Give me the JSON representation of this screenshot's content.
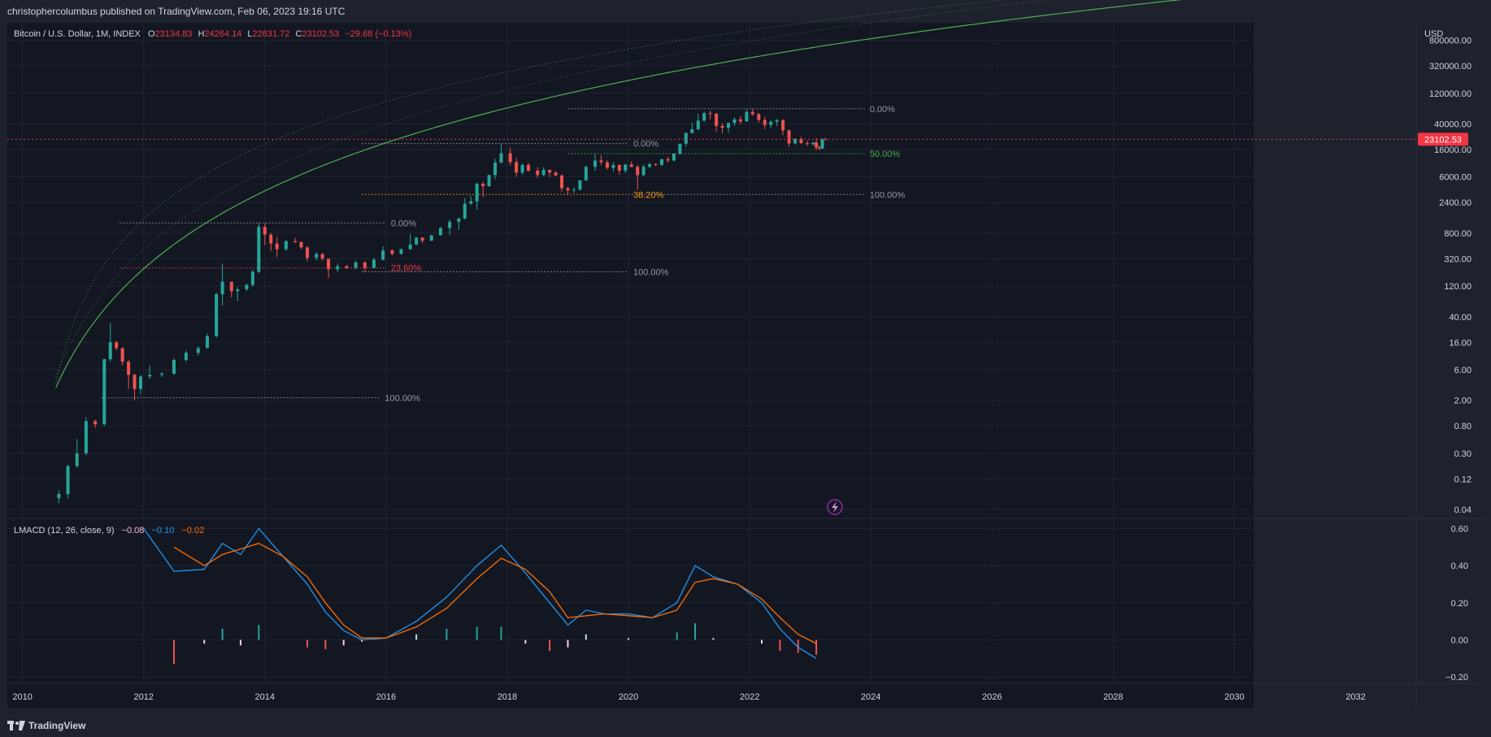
{
  "header": {
    "publisher_text": "christophercolumbus published on TradingView.com, Feb 06, 2023 19:16 UTC"
  },
  "footer": {
    "brand": "TradingView"
  },
  "legend": {
    "symbol": "Bitcoin / U.S. Dollar, 1M, INDEX",
    "o_label": "O",
    "o_value": "23134.83",
    "h_label": "H",
    "h_value": "24264.14",
    "l_label": "L",
    "l_value": "22631.72",
    "c_label": "C",
    "c_value": "23102.53",
    "change": "−29.68 (−0.13%)"
  },
  "price_axis": {
    "currency": "USD",
    "ticks": [
      "800000.00",
      "320000.00",
      "120000.00",
      "40000.00",
      "16000.00",
      "6000.00",
      "2400.00",
      "800.00",
      "320.00",
      "120.00",
      "40.00",
      "16.00",
      "6.00",
      "2.00",
      "0.80",
      "0.30",
      "0.12",
      "0.04"
    ],
    "last_price_label": "23102.53"
  },
  "macd_panel": {
    "title": "LMACD (12, 26, close, 9)",
    "hist_value": "−0.08",
    "macd_value": "−0.10",
    "signal_value": "−0.02",
    "ticks": [
      "0.60",
      "0.40",
      "0.20",
      "0.00",
      "−0.20"
    ]
  },
  "time_axis": {
    "ticks": [
      "2010",
      "2012",
      "2014",
      "2016",
      "2018",
      "2020",
      "2022",
      "2024",
      "2026",
      "2028",
      "2030",
      "2032"
    ]
  },
  "fib_labels": [
    {
      "text": "0.00%",
      "color": "#9598a1"
    },
    {
      "text": "23.60%",
      "color": "#f23645"
    },
    {
      "text": "100.00%",
      "color": "#9598a1"
    },
    {
      "text": "0.00%",
      "color": "#9598a1"
    },
    {
      "text": "38.20%",
      "color": "#ff9800"
    },
    {
      "text": "100.00%",
      "color": "#9598a1"
    },
    {
      "text": "0.00%",
      "color": "#9598a1"
    },
    {
      "text": "50.00%",
      "color": "#4caf50"
    },
    {
      "text": "100.00%",
      "color": "#9598a1"
    },
    {
      "text": "100.00%",
      "color": "#9598a1"
    }
  ],
  "colors": {
    "background": "#131722",
    "frame": "#1e222d",
    "grid": "#1f2430",
    "up_candle": "#26a69a",
    "down_candle": "#ef5350",
    "macd_line": "#2196f3",
    "signal_line": "#ff6d00",
    "hist_up": "#b2dfdb",
    "hist_up_strong": "#26a69a",
    "hist_down": "#ffcdd2",
    "hist_down_strong": "#ef5350",
    "last_price": "#f23645",
    "curve": "#4caf50",
    "event_icon": "#9c27b0"
  },
  "chart_data": {
    "type": "candlestick",
    "title": "Bitcoin / U.S. Dollar, 1M, INDEX",
    "y_scale": "log",
    "ylim": [
      0.03,
      1500000
    ],
    "xlim": [
      2009.75,
      2033.0
    ],
    "candles": [
      {
        "t": 2010.6,
        "o": 0.06,
        "h": 0.08,
        "l": 0.05,
        "c": 0.07
      },
      {
        "t": 2010.75,
        "o": 0.07,
        "h": 0.2,
        "l": 0.06,
        "c": 0.19
      },
      {
        "t": 2010.9,
        "o": 0.19,
        "h": 0.5,
        "l": 0.18,
        "c": 0.3
      },
      {
        "t": 2011.05,
        "o": 0.3,
        "h": 1.1,
        "l": 0.28,
        "c": 0.95
      },
      {
        "t": 2011.2,
        "o": 0.95,
        "h": 1.0,
        "l": 0.75,
        "c": 0.85
      },
      {
        "t": 2011.35,
        "o": 0.85,
        "h": 9.0,
        "l": 0.8,
        "c": 8.7
      },
      {
        "t": 2011.45,
        "o": 8.7,
        "h": 32.0,
        "l": 8.0,
        "c": 16.0
      },
      {
        "t": 2011.55,
        "o": 16.0,
        "h": 17.0,
        "l": 12.0,
        "c": 13.0
      },
      {
        "t": 2011.65,
        "o": 13.0,
        "h": 13.5,
        "l": 7.0,
        "c": 8.0
      },
      {
        "t": 2011.75,
        "o": 8.0,
        "h": 8.5,
        "l": 3.0,
        "c": 5.0
      },
      {
        "t": 2011.85,
        "o": 5.0,
        "h": 5.2,
        "l": 2.0,
        "c": 3.0
      },
      {
        "t": 2011.95,
        "o": 3.0,
        "h": 5.0,
        "l": 2.5,
        "c": 4.7
      },
      {
        "t": 2012.1,
        "o": 4.7,
        "h": 7.0,
        "l": 4.3,
        "c": 5.0
      },
      {
        "t": 2012.3,
        "o": 5.0,
        "h": 5.5,
        "l": 4.6,
        "c": 5.2
      },
      {
        "t": 2012.5,
        "o": 5.2,
        "h": 9.0,
        "l": 5.0,
        "c": 8.5
      },
      {
        "t": 2012.7,
        "o": 8.5,
        "h": 12.0,
        "l": 8.0,
        "c": 11.0
      },
      {
        "t": 2012.9,
        "o": 11.0,
        "h": 14.0,
        "l": 10.0,
        "c": 13.0
      },
      {
        "t": 2013.05,
        "o": 13.0,
        "h": 22.0,
        "l": 13.0,
        "c": 20.0
      },
      {
        "t": 2013.2,
        "o": 20.0,
        "h": 95.0,
        "l": 19.0,
        "c": 90.0
      },
      {
        "t": 2013.3,
        "o": 90.0,
        "h": 266.0,
        "l": 60.0,
        "c": 140.0
      },
      {
        "t": 2013.45,
        "o": 140.0,
        "h": 140.0,
        "l": 80.0,
        "c": 100.0
      },
      {
        "t": 2013.55,
        "o": 100.0,
        "h": 115.0,
        "l": 70.0,
        "c": 107.0
      },
      {
        "t": 2013.7,
        "o": 107.0,
        "h": 130.0,
        "l": 100.0,
        "c": 125.0
      },
      {
        "t": 2013.8,
        "o": 125.0,
        "h": 215.0,
        "l": 118.0,
        "c": 200.0
      },
      {
        "t": 2013.9,
        "o": 200.0,
        "h": 1150.0,
        "l": 190.0,
        "c": 1000.0
      },
      {
        "t": 2014.0,
        "o": 1000.0,
        "h": 1150.0,
        "l": 520.0,
        "c": 760.0
      },
      {
        "t": 2014.1,
        "o": 760.0,
        "h": 800.0,
        "l": 420.0,
        "c": 550.0
      },
      {
        "t": 2014.2,
        "o": 550.0,
        "h": 700.0,
        "l": 340.0,
        "c": 450.0
      },
      {
        "t": 2014.35,
        "o": 450.0,
        "h": 620.0,
        "l": 420.0,
        "c": 600.0
      },
      {
        "t": 2014.5,
        "o": 600.0,
        "h": 680.0,
        "l": 560.0,
        "c": 580.0
      },
      {
        "t": 2014.6,
        "o": 580.0,
        "h": 600.0,
        "l": 450.0,
        "c": 480.0
      },
      {
        "t": 2014.7,
        "o": 480.0,
        "h": 500.0,
        "l": 290.0,
        "c": 330.0
      },
      {
        "t": 2014.85,
        "o": 330.0,
        "h": 400.0,
        "l": 300.0,
        "c": 380.0
      },
      {
        "t": 2014.95,
        "o": 380.0,
        "h": 390.0,
        "l": 300.0,
        "c": 320.0
      },
      {
        "t": 2015.05,
        "o": 320.0,
        "h": 320.0,
        "l": 160.0,
        "c": 220.0
      },
      {
        "t": 2015.2,
        "o": 220.0,
        "h": 270.0,
        "l": 200.0,
        "c": 245.0
      },
      {
        "t": 2015.35,
        "o": 245.0,
        "h": 255.0,
        "l": 220.0,
        "c": 230.0
      },
      {
        "t": 2015.5,
        "o": 230.0,
        "h": 300.0,
        "l": 220.0,
        "c": 280.0
      },
      {
        "t": 2015.65,
        "o": 280.0,
        "h": 290.0,
        "l": 200.0,
        "c": 230.0
      },
      {
        "t": 2015.8,
        "o": 230.0,
        "h": 330.0,
        "l": 230.0,
        "c": 310.0
      },
      {
        "t": 2015.95,
        "o": 310.0,
        "h": 500.0,
        "l": 300.0,
        "c": 430.0
      },
      {
        "t": 2016.1,
        "o": 430.0,
        "h": 450.0,
        "l": 360.0,
        "c": 380.0
      },
      {
        "t": 2016.25,
        "o": 380.0,
        "h": 460.0,
        "l": 370.0,
        "c": 450.0
      },
      {
        "t": 2016.4,
        "o": 450.0,
        "h": 780.0,
        "l": 440.0,
        "c": 530.0
      },
      {
        "t": 2016.5,
        "o": 530.0,
        "h": 700.0,
        "l": 520.0,
        "c": 680.0
      },
      {
        "t": 2016.6,
        "o": 680.0,
        "h": 690.0,
        "l": 560.0,
        "c": 610.0
      },
      {
        "t": 2016.75,
        "o": 610.0,
        "h": 750.0,
        "l": 600.0,
        "c": 740.0
      },
      {
        "t": 2016.9,
        "o": 740.0,
        "h": 1000.0,
        "l": 730.0,
        "c": 960.0
      },
      {
        "t": 2017.05,
        "o": 960.0,
        "h": 1300.0,
        "l": 750.0,
        "c": 1200.0
      },
      {
        "t": 2017.2,
        "o": 1200.0,
        "h": 1400.0,
        "l": 900.0,
        "c": 1350.0
      },
      {
        "t": 2017.3,
        "o": 1350.0,
        "h": 2800.0,
        "l": 1300.0,
        "c": 2300.0
      },
      {
        "t": 2017.4,
        "o": 2300.0,
        "h": 3000.0,
        "l": 2200.0,
        "c": 2500.0
      },
      {
        "t": 2017.5,
        "o": 2500.0,
        "h": 4900.0,
        "l": 1850.0,
        "c": 4700.0
      },
      {
        "t": 2017.6,
        "o": 4700.0,
        "h": 5000.0,
        "l": 2900.0,
        "c": 4300.0
      },
      {
        "t": 2017.7,
        "o": 4300.0,
        "h": 6500.0,
        "l": 4200.0,
        "c": 6400.0
      },
      {
        "t": 2017.8,
        "o": 6400.0,
        "h": 11500.0,
        "l": 5500.0,
        "c": 10000.0
      },
      {
        "t": 2017.9,
        "o": 10000.0,
        "h": 19800.0,
        "l": 9800.0,
        "c": 14000.0
      },
      {
        "t": 2018.05,
        "o": 14000.0,
        "h": 17200.0,
        "l": 9000.0,
        "c": 10200.0
      },
      {
        "t": 2018.15,
        "o": 10200.0,
        "h": 11800.0,
        "l": 6000.0,
        "c": 7000.0
      },
      {
        "t": 2018.25,
        "o": 7000.0,
        "h": 9700.0,
        "l": 6500.0,
        "c": 9200.0
      },
      {
        "t": 2018.35,
        "o": 9200.0,
        "h": 9900.0,
        "l": 7200.0,
        "c": 7500.0
      },
      {
        "t": 2018.5,
        "o": 7500.0,
        "h": 8500.0,
        "l": 5800.0,
        "c": 6400.0
      },
      {
        "t": 2018.6,
        "o": 6400.0,
        "h": 8500.0,
        "l": 6200.0,
        "c": 7700.0
      },
      {
        "t": 2018.7,
        "o": 7700.0,
        "h": 7800.0,
        "l": 5900.0,
        "c": 7000.0
      },
      {
        "t": 2018.8,
        "o": 7000.0,
        "h": 7400.0,
        "l": 6200.0,
        "c": 6300.0
      },
      {
        "t": 2018.9,
        "o": 6300.0,
        "h": 6600.0,
        "l": 3500.0,
        "c": 4000.0
      },
      {
        "t": 2019.0,
        "o": 4000.0,
        "h": 4200.0,
        "l": 3200.0,
        "c": 3700.0
      },
      {
        "t": 2019.1,
        "o": 3700.0,
        "h": 4100.0,
        "l": 3400.0,
        "c": 3800.0
      },
      {
        "t": 2019.2,
        "o": 3800.0,
        "h": 5300.0,
        "l": 3700.0,
        "c": 5300.0
      },
      {
        "t": 2019.3,
        "o": 5300.0,
        "h": 9000.0,
        "l": 5200.0,
        "c": 8600.0
      },
      {
        "t": 2019.45,
        "o": 8600.0,
        "h": 13800.0,
        "l": 7500.0,
        "c": 10800.0
      },
      {
        "t": 2019.55,
        "o": 10800.0,
        "h": 13000.0,
        "l": 9100.0,
        "c": 10100.0
      },
      {
        "t": 2019.65,
        "o": 10100.0,
        "h": 10900.0,
        "l": 7800.0,
        "c": 8300.0
      },
      {
        "t": 2019.75,
        "o": 8300.0,
        "h": 10300.0,
        "l": 7300.0,
        "c": 9200.0
      },
      {
        "t": 2019.85,
        "o": 9200.0,
        "h": 9300.0,
        "l": 6500.0,
        "c": 7500.0
      },
      {
        "t": 2019.95,
        "o": 7500.0,
        "h": 9500.0,
        "l": 6900.0,
        "c": 9350.0
      },
      {
        "t": 2020.05,
        "o": 9350.0,
        "h": 10500.0,
        "l": 8500.0,
        "c": 8600.0
      },
      {
        "t": 2020.15,
        "o": 8600.0,
        "h": 9200.0,
        "l": 3800.0,
        "c": 6400.0
      },
      {
        "t": 2020.25,
        "o": 6400.0,
        "h": 9400.0,
        "l": 6200.0,
        "c": 8600.0
      },
      {
        "t": 2020.35,
        "o": 8600.0,
        "h": 10000.0,
        "l": 8100.0,
        "c": 9450.0
      },
      {
        "t": 2020.45,
        "o": 9450.0,
        "h": 9800.0,
        "l": 8900.0,
        "c": 9150.0
      },
      {
        "t": 2020.55,
        "o": 9150.0,
        "h": 11500.0,
        "l": 9000.0,
        "c": 11300.0
      },
      {
        "t": 2020.65,
        "o": 11300.0,
        "h": 12400.0,
        "l": 10000.0,
        "c": 10800.0
      },
      {
        "t": 2020.75,
        "o": 10800.0,
        "h": 13800.0,
        "l": 10400.0,
        "c": 13800.0
      },
      {
        "t": 2020.85,
        "o": 13800.0,
        "h": 19800.0,
        "l": 13200.0,
        "c": 19700.0
      },
      {
        "t": 2020.95,
        "o": 19700.0,
        "h": 29300.0,
        "l": 17600.0,
        "c": 29000.0
      },
      {
        "t": 2021.05,
        "o": 29000.0,
        "h": 42000.0,
        "l": 28000.0,
        "c": 33000.0
      },
      {
        "t": 2021.15,
        "o": 33000.0,
        "h": 58000.0,
        "l": 32000.0,
        "c": 45000.0
      },
      {
        "t": 2021.25,
        "o": 45000.0,
        "h": 61800.0,
        "l": 43000.0,
        "c": 58800.0
      },
      {
        "t": 2021.35,
        "o": 58800.0,
        "h": 64800.0,
        "l": 47000.0,
        "c": 57700.0
      },
      {
        "t": 2021.45,
        "o": 57700.0,
        "h": 59500.0,
        "l": 30000.0,
        "c": 37300.0
      },
      {
        "t": 2021.55,
        "o": 37300.0,
        "h": 41000.0,
        "l": 28800.0,
        "c": 35000.0
      },
      {
        "t": 2021.65,
        "o": 35000.0,
        "h": 42000.0,
        "l": 29200.0,
        "c": 41500.0
      },
      {
        "t": 2021.75,
        "o": 41500.0,
        "h": 50500.0,
        "l": 37300.0,
        "c": 47100.0
      },
      {
        "t": 2021.85,
        "o": 47100.0,
        "h": 52900.0,
        "l": 39600.0,
        "c": 43800.0
      },
      {
        "t": 2021.95,
        "o": 43800.0,
        "h": 67000.0,
        "l": 43200.0,
        "c": 61300.0
      },
      {
        "t": 2022.05,
        "o": 61300.0,
        "h": 69000.0,
        "l": 53000.0,
        "c": 57000.0
      },
      {
        "t": 2022.15,
        "o": 57000.0,
        "h": 59200.0,
        "l": 42000.0,
        "c": 46200.0
      },
      {
        "t": 2022.25,
        "o": 46200.0,
        "h": 52000.0,
        "l": 33000.0,
        "c": 38500.0
      },
      {
        "t": 2022.35,
        "o": 38500.0,
        "h": 45800.0,
        "l": 34300.0,
        "c": 43200.0
      },
      {
        "t": 2022.45,
        "o": 43200.0,
        "h": 48200.0,
        "l": 37400.0,
        "c": 45500.0
      },
      {
        "t": 2022.55,
        "o": 45500.0,
        "h": 47500.0,
        "l": 26700.0,
        "c": 31800.0
      },
      {
        "t": 2022.65,
        "o": 31800.0,
        "h": 32400.0,
        "l": 17600.0,
        "c": 19900.0
      },
      {
        "t": 2022.75,
        "o": 19900.0,
        "h": 24200.0,
        "l": 18900.0,
        "c": 23300.0
      },
      {
        "t": 2022.85,
        "o": 23300.0,
        "h": 25200.0,
        "l": 19500.0,
        "c": 20100.0
      },
      {
        "t": 2022.95,
        "o": 20100.0,
        "h": 22000.0,
        "l": 18200.0,
        "c": 19400.0
      },
      {
        "t": 2023.05,
        "o": 19400.0,
        "h": 20800.0,
        "l": 18500.0,
        "c": 20500.0
      },
      {
        "t": 2023.1,
        "o": 20500.0,
        "h": 23900.0,
        "l": 15500.0,
        "c": 17200.0
      },
      {
        "t": 2023.15,
        "o": 17200.0,
        "h": 18400.0,
        "l": 15600.0,
        "c": 16500.0
      },
      {
        "t": 2023.2,
        "o": 16500.0,
        "h": 23900.0,
        "l": 16500.0,
        "c": 23100.0
      },
      {
        "t": 2023.25,
        "o": 23134.83,
        "h": 24264.14,
        "l": 22631.72,
        "c": 23102.53
      }
    ],
    "last_price": 23102.53,
    "fib_levels": [
      {
        "level": "0.00%",
        "price": 1150,
        "x0": 2011.6,
        "x1": 2016.0
      },
      {
        "level": "23.60%",
        "price": 230,
        "x0": 2011.6,
        "x1": 2016.0
      },
      {
        "level": "100.00%",
        "price": 200,
        "x0": 2015.6,
        "x1": 2020.0
      },
      {
        "level": "0.00%",
        "price": 19800,
        "x0": 2015.6,
        "x1": 2020.0
      },
      {
        "level": "38.20%",
        "price": 3200,
        "x0": 2015.6,
        "x1": 2020.0
      },
      {
        "level": "100.00%",
        "price": 3200,
        "x0": 2020.0,
        "x1": 2023.9
      },
      {
        "level": "0.00%",
        "price": 69000,
        "x0": 2019.0,
        "x1": 2023.9
      },
      {
        "level": "50.00%",
        "price": 13800,
        "x0": 2019.0,
        "x1": 2023.9
      },
      {
        "level": "100.00%",
        "price": 2.2,
        "x0": 2011.3,
        "x1": 2015.9
      }
    ],
    "macd": {
      "x": [
        2012.0,
        2012.5,
        2013.0,
        2013.3,
        2013.6,
        2013.9,
        2014.3,
        2014.7,
        2015.0,
        2015.3,
        2015.6,
        2016.0,
        2016.5,
        2017.0,
        2017.5,
        2017.9,
        2018.3,
        2018.7,
        2019.0,
        2019.3,
        2019.6,
        2020.0,
        2020.4,
        2020.8,
        2021.1,
        2021.4,
        2021.8,
        2022.2,
        2022.5,
        2022.8,
        2023.1
      ],
      "macd": [
        0.6,
        0.37,
        0.38,
        0.52,
        0.46,
        0.6,
        0.45,
        0.3,
        0.15,
        0.05,
        0.0,
        0.01,
        0.1,
        0.23,
        0.4,
        0.51,
        0.36,
        0.2,
        0.08,
        0.16,
        0.14,
        0.14,
        0.12,
        0.2,
        0.4,
        0.34,
        0.3,
        0.2,
        0.06,
        -0.04,
        -0.1
      ],
      "signal": [
        null,
        0.5,
        0.4,
        0.46,
        0.49,
        0.52,
        0.45,
        0.34,
        0.2,
        0.08,
        0.01,
        0.01,
        0.07,
        0.17,
        0.33,
        0.44,
        0.38,
        0.26,
        0.12,
        0.13,
        0.14,
        0.13,
        0.12,
        0.16,
        0.31,
        0.33,
        0.3,
        0.22,
        0.12,
        0.03,
        -0.02
      ],
      "ylim": [
        -0.23,
        0.65
      ]
    }
  }
}
